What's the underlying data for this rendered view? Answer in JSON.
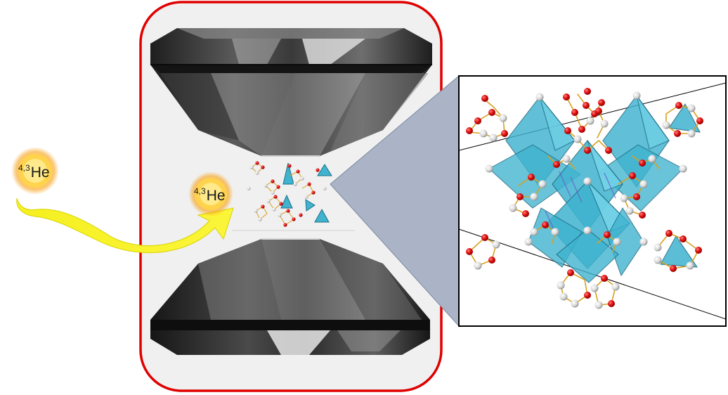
{
  "helium": {
    "mass_numbers": "4,3",
    "symbol": "He"
  },
  "colors": {
    "cell_border": "#e00000",
    "cell_background": "#f0f0f0",
    "diamond_dark": "#2a2a2a",
    "diamond_mid": "#6a6a6a",
    "diamond_light": "#d8d8d8",
    "arrow_yellow": "#f2ee12",
    "glow_orange": "#f7a21a",
    "zoom_cone": "#aab4c6",
    "octahedron": "#3fb3cf",
    "oxygen_atom": "#e01010",
    "cation_atom": "#d9d9d9",
    "bond": "#d8a020"
  },
  "icons": {
    "anvil": "diamond-anvil-icon",
    "helium": "helium-atom-icon",
    "structure": "crystal-structure-icon"
  }
}
